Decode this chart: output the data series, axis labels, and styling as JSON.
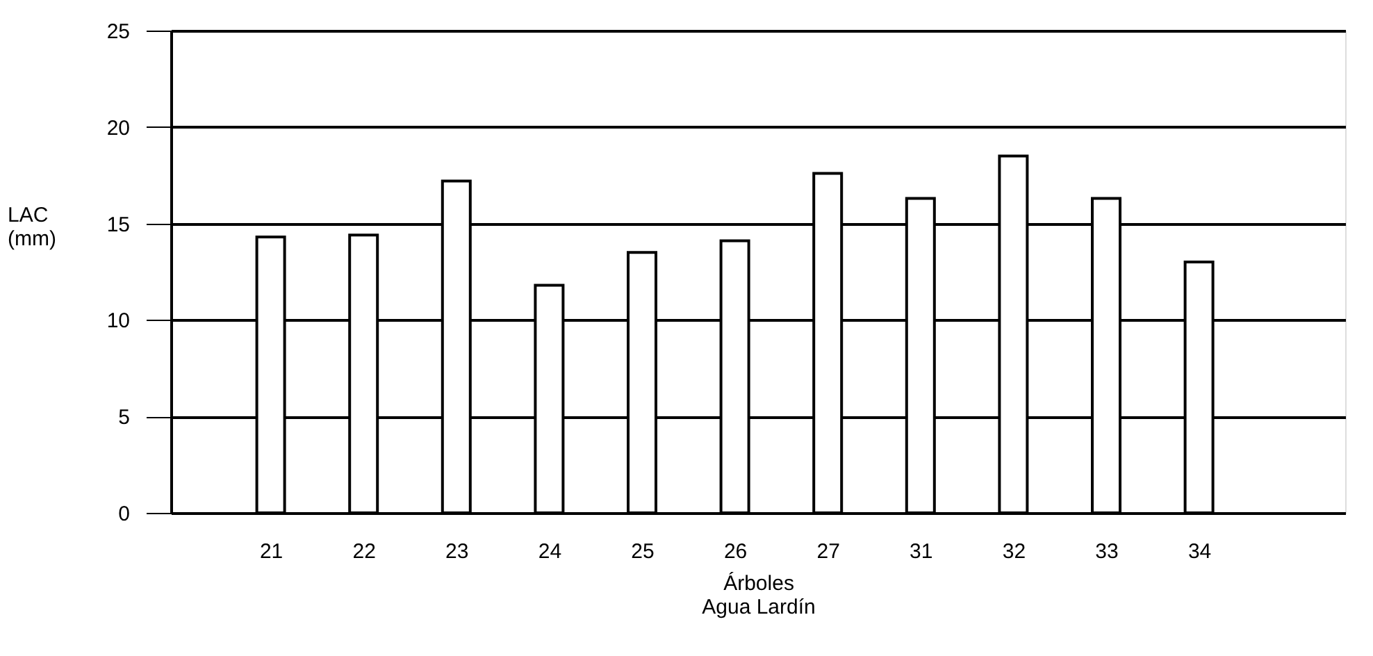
{
  "chart_data": {
    "type": "bar",
    "categories": [
      "21",
      "22",
      "23",
      "24",
      "25",
      "26",
      "27",
      "31",
      "32",
      "33",
      "34"
    ],
    "values": [
      14.3,
      14.4,
      17.2,
      11.8,
      13.5,
      14.1,
      17.6,
      16.3,
      18.5,
      16.3,
      13.0
    ],
    "color": "#ffffff",
    "xlabel": "Árboles",
    "ylabel": "LAC\n(mm)",
    "annotations": [
      "Agua Lardín"
    ],
    "ylim": [
      0,
      25
    ],
    "yticks": [
      0,
      5,
      10,
      15,
      20,
      25
    ],
    "grid": "y"
  }
}
